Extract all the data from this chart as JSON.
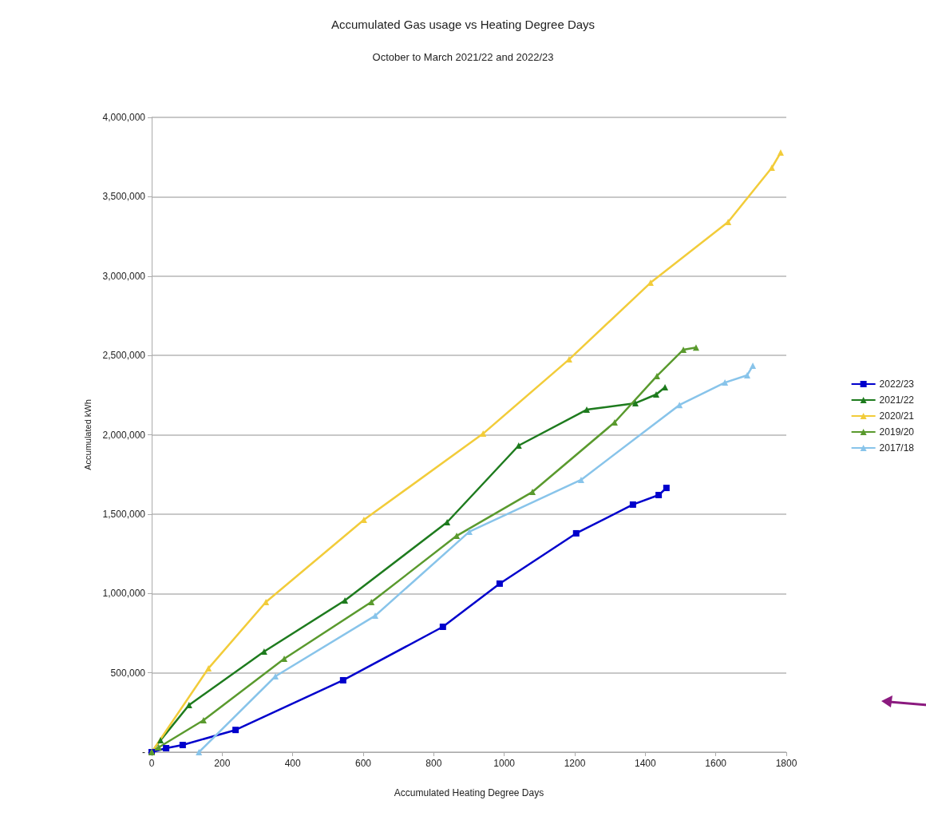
{
  "chart_data": {
    "type": "line",
    "title": "Accumulated Gas usage vs Heating Degree Days",
    "subtitle": "October to March 2021/22 and 2022/23",
    "xlabel": "Accumulated Heating Degree Days",
    "ylabel": "Accumulated kWh",
    "xlim": [
      0,
      1800
    ],
    "xticks": [
      0,
      200,
      400,
      600,
      800,
      1000,
      1200,
      1400,
      1600,
      1800
    ],
    "ylim": [
      0,
      4000000
    ],
    "yticks": [
      {
        "value": 0,
        "label": "-"
      },
      {
        "value": 500000,
        "label": "500,000"
      },
      {
        "value": 1000000,
        "label": "1,000,000"
      },
      {
        "value": 1500000,
        "label": "1,500,000"
      },
      {
        "value": 2000000,
        "label": "2,000,000"
      },
      {
        "value": 2500000,
        "label": "2,500,000"
      },
      {
        "value": 3000000,
        "label": "3,000,000"
      },
      {
        "value": 3500000,
        "label": "3,500,000"
      },
      {
        "value": 4000000,
        "label": "4,000,000"
      }
    ],
    "grid": "y",
    "legend": "right",
    "line_style": "solid",
    "series": [
      {
        "name": "2022/23",
        "color": "#0000cc",
        "marker": "square",
        "x": [
          0,
          41,
          88,
          238,
          543,
          826,
          987,
          1204,
          1365,
          1438,
          1460
        ],
        "values": [
          0,
          25000,
          45000,
          140000,
          453000,
          790000,
          1062000,
          1379000,
          1560000,
          1620000,
          1665000
        ]
      },
      {
        "name": "2021/22",
        "color": "#1e7b1e",
        "marker": "triangle",
        "x": [
          0,
          25,
          106,
          319,
          548,
          838,
          1041,
          1234,
          1372,
          1431,
          1456
        ],
        "values": [
          0,
          75000,
          297000,
          634000,
          956000,
          1449000,
          1932000,
          2158000,
          2199000,
          2254000,
          2299000
        ]
      },
      {
        "name": "2020/21",
        "color": "#f2cc3a",
        "marker": "triangle",
        "x": [
          0,
          161,
          324,
          602,
          940,
          1184,
          1415,
          1635,
          1759,
          1784
        ],
        "values": [
          0,
          528000,
          946000,
          1464000,
          2007000,
          2475000,
          2958000,
          3341000,
          3683000,
          3778000
        ]
      },
      {
        "name": "2019/20",
        "color": "#5a9a2e",
        "marker": "triangle",
        "x": [
          0,
          20,
          147,
          376,
          623,
          865,
          1080,
          1313,
          1433,
          1508,
          1544
        ],
        "values": [
          0,
          30000,
          201000,
          589000,
          946000,
          1363000,
          1640000,
          2078000,
          2370000,
          2536000,
          2550000
        ]
      },
      {
        "name": "2017/18",
        "color": "#88c4ea",
        "marker": "triangle",
        "x": [
          134,
          351,
          634,
          901,
          1218,
          1497,
          1626,
          1689,
          1705
        ],
        "values": [
          0,
          478000,
          860000,
          1389000,
          1716000,
          2188000,
          2329000,
          2375000,
          2435000
        ]
      }
    ]
  }
}
